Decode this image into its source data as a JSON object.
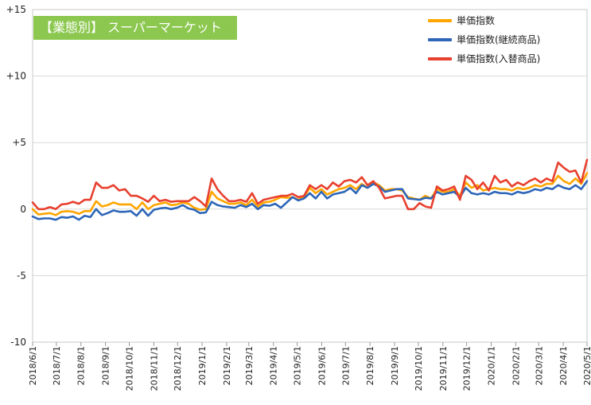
{
  "chart_data": {
    "type": "line",
    "title": "【業態別】 スーパーマーケット",
    "xlabel": "",
    "ylabel": "",
    "ylim": [
      -10,
      15
    ],
    "ytick_labels": [
      "+15",
      "+10",
      "+5",
      "0",
      "-5",
      "-10"
    ],
    "ytick_values": [
      15,
      10,
      5,
      0,
      -5,
      -10
    ],
    "x_start": "2018/6/1",
    "x_end": "2020/5/1",
    "xtick_labels": [
      "2018/6/1",
      "2018/7/1",
      "2018/8/1",
      "2018/9/1",
      "2018/10/1",
      "2018/11/1",
      "2018/12/1",
      "2019/1/1",
      "2019/2/1",
      "2019/3/1",
      "2019/4/1",
      "2019/5/1",
      "2019/6/1",
      "2019/7/1",
      "2019/8/1",
      "2019/9/1",
      "2019/10/1",
      "2019/11/1",
      "2019/12/1",
      "2020/1/1",
      "2020/2/1",
      "2020/3/1",
      "2020/4/1",
      "2020/5/1"
    ],
    "grid": true,
    "legend_position": "top-right",
    "series": [
      {
        "name": "単価指数",
        "color": "#ffa500",
        "values": [
          0.0,
          -0.4,
          -0.35,
          -0.3,
          -0.45,
          -0.2,
          -0.15,
          -0.2,
          -0.35,
          -0.15,
          -0.15,
          0.6,
          0.2,
          0.3,
          0.5,
          0.35,
          0.35,
          0.35,
          0.0,
          0.5,
          0.0,
          0.3,
          0.4,
          0.5,
          0.3,
          0.35,
          0.5,
          0.4,
          0.1,
          -0.05,
          0.0,
          1.3,
          0.8,
          0.6,
          0.4,
          0.4,
          0.5,
          0.3,
          0.7,
          0.2,
          0.5,
          0.55,
          0.7,
          0.9,
          0.85,
          0.9,
          0.7,
          0.9,
          1.6,
          1.2,
          1.5,
          1.1,
          1.3,
          1.5,
          1.6,
          1.8,
          1.5,
          1.9,
          1.6,
          2.0,
          1.8,
          1.4,
          1.5,
          1.5,
          1.4,
          0.9,
          0.8,
          0.7,
          1.0,
          0.8,
          1.5,
          1.3,
          1.3,
          1.5,
          1.0,
          2.0,
          1.6,
          1.8,
          1.4,
          1.5,
          1.6,
          1.5,
          1.5,
          1.4,
          1.6,
          1.5,
          1.6,
          1.8,
          1.7,
          1.9,
          1.9,
          2.5,
          2.1,
          1.9,
          2.3,
          1.9,
          2.7
        ]
      },
      {
        "name": "単価指数(継続商品)",
        "color": "#2e66b8",
        "values": [
          -0.55,
          -0.75,
          -0.7,
          -0.7,
          -0.8,
          -0.6,
          -0.65,
          -0.55,
          -0.8,
          -0.5,
          -0.6,
          0.0,
          -0.45,
          -0.3,
          -0.1,
          -0.2,
          -0.2,
          -0.15,
          -0.5,
          0.0,
          -0.5,
          -0.05,
          0.05,
          0.1,
          0.0,
          0.1,
          0.3,
          0.05,
          -0.05,
          -0.3,
          -0.25,
          0.55,
          0.3,
          0.2,
          0.15,
          0.1,
          0.3,
          0.15,
          0.4,
          0.0,
          0.3,
          0.25,
          0.4,
          0.1,
          0.5,
          0.9,
          0.65,
          0.8,
          1.2,
          0.8,
          1.3,
          0.8,
          1.1,
          1.2,
          1.3,
          1.6,
          1.2,
          1.8,
          1.6,
          1.9,
          1.7,
          1.3,
          1.4,
          1.5,
          1.5,
          0.8,
          0.75,
          0.7,
          0.85,
          0.8,
          1.3,
          1.1,
          1.2,
          1.3,
          0.9,
          1.6,
          1.2,
          1.1,
          1.2,
          1.1,
          1.3,
          1.2,
          1.2,
          1.1,
          1.3,
          1.2,
          1.3,
          1.5,
          1.4,
          1.6,
          1.5,
          1.8,
          1.6,
          1.5,
          1.8,
          1.5,
          2.1
        ]
      },
      {
        "name": "単価指数(入替商品)",
        "color": "#e8402e",
        "values": [
          0.5,
          0.0,
          0.0,
          0.15,
          0.0,
          0.35,
          0.4,
          0.55,
          0.4,
          0.7,
          0.7,
          2.0,
          1.6,
          1.6,
          1.8,
          1.4,
          1.5,
          1.0,
          1.0,
          0.8,
          0.55,
          1.0,
          0.6,
          0.7,
          0.55,
          0.6,
          0.6,
          0.6,
          0.9,
          0.6,
          0.2,
          2.3,
          1.5,
          1.0,
          0.6,
          0.6,
          0.7,
          0.55,
          1.2,
          0.4,
          0.7,
          0.8,
          0.9,
          1.0,
          1.0,
          1.15,
          0.9,
          1.0,
          1.8,
          1.5,
          1.8,
          1.5,
          2.0,
          1.7,
          2.1,
          2.2,
          2.0,
          2.4,
          1.8,
          2.1,
          1.6,
          0.8,
          0.9,
          1.0,
          1.0,
          0.0,
          0.0,
          0.45,
          0.2,
          0.1,
          1.7,
          1.4,
          1.5,
          1.7,
          0.7,
          2.5,
          2.2,
          1.5,
          2.0,
          1.4,
          2.5,
          2.0,
          2.2,
          1.7,
          2.0,
          1.8,
          2.1,
          2.3,
          2.0,
          2.3,
          2.1,
          3.5,
          3.1,
          2.8,
          2.9,
          2.0,
          3.7
        ]
      }
    ]
  }
}
